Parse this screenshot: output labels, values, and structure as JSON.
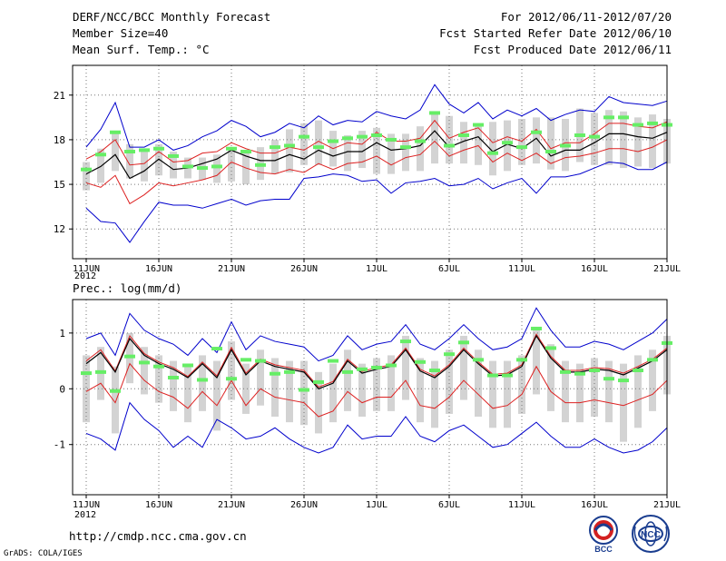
{
  "header": {
    "left": [
      "DERF/NCC/BCC Monthly Forecast",
      "Member Size=40",
      "Mean Surf. Temp.: °C"
    ],
    "right": [
      "For 2012/06/11-2012/07/20",
      "Fcst Started Refer Date 2012/06/10",
      "Fcst Produced Date 2012/06/11"
    ]
  },
  "footer": {
    "url": "http://cmdp.ncc.cma.gov.cn",
    "grads": "GrADS: COLA/IGES"
  },
  "logos": {
    "bcc": "BCC",
    "ncc": "NCC"
  },
  "colors": {
    "box": "#d3d3d3",
    "median": "#66ee66",
    "mean": "#000000",
    "band": "#dd2222",
    "extreme": "#0000cc"
  },
  "chart_data": [
    {
      "type": "line",
      "title": "Mean Surf. Temp.: °C",
      "x_labels": [
        "11JUN",
        "16JUN",
        "21JUN",
        "26JUN",
        "1JUL",
        "6JUL",
        "11JUL",
        "16JUL",
        "21JUL"
      ],
      "year_label": "2012",
      "ylim": [
        10,
        23
      ],
      "yticks": [
        12,
        15,
        18,
        21
      ],
      "mean": [
        15.7,
        16.2,
        17.0,
        15.4,
        15.9,
        16.7,
        16.0,
        16.1,
        16.4,
        16.7,
        17.3,
        16.9,
        16.6,
        16.6,
        17.0,
        16.7,
        17.3,
        16.9,
        17.2,
        17.2,
        17.8,
        17.3,
        17.4,
        17.6,
        18.6,
        17.5,
        17.9,
        18.2,
        17.2,
        17.7,
        17.4,
        18.1,
        16.9,
        17.3,
        17.3,
        17.8,
        18.4,
        18.4,
        18.2,
        18.1,
        18.5
      ],
      "series": [
        {
          "name": "upper-extreme",
          "values": [
            17.5,
            18.7,
            20.5,
            17.5,
            17.5,
            18.0,
            17.3,
            17.6,
            18.2,
            18.6,
            19.3,
            18.9,
            18.2,
            18.5,
            19.1,
            18.8,
            19.6,
            19.0,
            19.3,
            19.2,
            19.9,
            19.6,
            19.4,
            20.0,
            21.7,
            20.4,
            19.8,
            20.5,
            19.4,
            20.0,
            19.6,
            20.1,
            19.3,
            19.7,
            20.0,
            19.9,
            20.9,
            20.5,
            20.4,
            20.3,
            20.6
          ]
        },
        {
          "name": "upper-band",
          "values": [
            16.7,
            17.2,
            18.0,
            16.3,
            16.4,
            17.2,
            16.5,
            16.6,
            17.1,
            17.2,
            17.8,
            17.4,
            17.1,
            17.1,
            17.5,
            17.3,
            17.9,
            17.4,
            17.8,
            17.7,
            18.5,
            17.9,
            17.9,
            18.1,
            19.3,
            18.1,
            18.5,
            18.8,
            17.8,
            18.2,
            17.9,
            18.7,
            17.4,
            17.8,
            17.8,
            18.4,
            19.1,
            19.1,
            18.9,
            18.8,
            19.2
          ]
        },
        {
          "name": "lower-band",
          "values": [
            15.1,
            14.8,
            15.6,
            13.7,
            14.3,
            15.1,
            14.9,
            15.1,
            15.3,
            15.6,
            16.5,
            16.1,
            15.8,
            15.7,
            16.0,
            15.8,
            16.4,
            16.0,
            16.4,
            16.5,
            16.9,
            16.3,
            16.8,
            17.0,
            17.9,
            16.9,
            17.3,
            17.6,
            16.5,
            17.1,
            16.6,
            17.1,
            16.4,
            16.8,
            16.9,
            17.1,
            17.4,
            17.4,
            17.2,
            17.5,
            18.0
          ]
        },
        {
          "name": "lower-extreme",
          "values": [
            13.4,
            12.5,
            12.4,
            11.1,
            12.5,
            13.8,
            13.6,
            13.6,
            13.4,
            13.7,
            14.0,
            13.6,
            13.9,
            14.0,
            14.0,
            15.4,
            15.5,
            15.7,
            15.6,
            15.2,
            15.3,
            14.4,
            15.1,
            15.2,
            15.4,
            14.9,
            15.0,
            15.4,
            14.7,
            15.1,
            15.4,
            14.4,
            15.5,
            15.5,
            15.7,
            16.1,
            16.5,
            16.4,
            16.0,
            16.0,
            16.5
          ]
        },
        {
          "name": "ensemble-median",
          "values": [
            16.0,
            17.0,
            18.5,
            17.2,
            17.3,
            17.4,
            16.9,
            16.2,
            16.1,
            16.2,
            17.4,
            17.2,
            16.3,
            17.5,
            17.6,
            18.2,
            17.5,
            17.9,
            18.1,
            18.2,
            18.3,
            18.0,
            17.5,
            17.9,
            19.8,
            17.6,
            18.3,
            19.0,
            17.1,
            17.8,
            17.5,
            18.5,
            17.2,
            17.6,
            18.3,
            18.2,
            19.5,
            19.5,
            19.0,
            19.1,
            19.0
          ]
        },
        {
          "name": "box-top",
          "values": [
            16.5,
            17.4,
            18.5,
            17.7,
            17.3,
            17.7,
            17.2,
            16.8,
            16.8,
            17.0,
            17.4,
            17.2,
            17.5,
            18.0,
            18.7,
            19.1,
            19.3,
            18.6,
            18.3,
            18.6,
            18.8,
            18.4,
            18.4,
            18.9,
            19.9,
            19.6,
            19.2,
            19.1,
            19.2,
            19.3,
            19.4,
            19.5,
            19.5,
            19.4,
            20.1,
            19.8,
            20.0,
            19.9,
            19.5,
            19.7,
            19.4
          ]
        },
        {
          "name": "box-bottom",
          "values": [
            14.6,
            15.1,
            15.9,
            15.4,
            15.2,
            15.6,
            15.4,
            15.4,
            15.3,
            15.1,
            15.2,
            15.0,
            15.3,
            15.7,
            15.8,
            16.3,
            16.3,
            16.2,
            15.9,
            16.1,
            15.7,
            15.7,
            15.9,
            15.9,
            16.4,
            16.4,
            16.4,
            16.3,
            15.6,
            15.9,
            16.3,
            16.4,
            16.0,
            15.9,
            16.5,
            16.3,
            16.3,
            16.1,
            16.2,
            16.1,
            16.4
          ]
        }
      ]
    },
    {
      "type": "line",
      "title": "Prec.: log(mm/d)",
      "x_labels": [
        "11JUN",
        "16JUN",
        "21JUN",
        "26JUN",
        "1JUL",
        "6JUL",
        "11JUL",
        "16JUL",
        "21JUL"
      ],
      "year_label": "2012",
      "ylim": [
        -1.9,
        1.6
      ],
      "yticks": [
        -1,
        0,
        1
      ],
      "mean": [
        0.45,
        0.65,
        0.3,
        0.9,
        0.6,
        0.45,
        0.35,
        0.2,
        0.45,
        0.2,
        0.7,
        0.25,
        0.5,
        0.4,
        0.35,
        0.3,
        0.0,
        0.1,
        0.5,
        0.28,
        0.35,
        0.4,
        0.7,
        0.32,
        0.2,
        0.4,
        0.7,
        0.45,
        0.23,
        0.25,
        0.4,
        0.95,
        0.55,
        0.3,
        0.3,
        0.35,
        0.33,
        0.25,
        0.37,
        0.5,
        0.7
      ],
      "series": [
        {
          "name": "upper-extreme",
          "values": [
            0.9,
            1.0,
            0.6,
            1.35,
            1.05,
            0.9,
            0.8,
            0.6,
            0.9,
            0.65,
            1.2,
            0.7,
            0.95,
            0.85,
            0.8,
            0.75,
            0.5,
            0.6,
            0.95,
            0.7,
            0.8,
            0.85,
            1.15,
            0.8,
            0.7,
            0.9,
            1.15,
            0.9,
            0.7,
            0.75,
            0.9,
            1.45,
            1.05,
            0.75,
            0.75,
            0.85,
            0.8,
            0.7,
            0.85,
            1.0,
            1.25
          ]
        },
        {
          "name": "upper-band",
          "values": [
            0.5,
            0.7,
            0.32,
            0.95,
            0.63,
            0.48,
            0.38,
            0.22,
            0.48,
            0.23,
            0.74,
            0.28,
            0.53,
            0.43,
            0.38,
            0.33,
            0.03,
            0.13,
            0.53,
            0.31,
            0.38,
            0.43,
            0.73,
            0.35,
            0.23,
            0.43,
            0.73,
            0.48,
            0.26,
            0.28,
            0.43,
            0.98,
            0.58,
            0.33,
            0.33,
            0.38,
            0.36,
            0.28,
            0.4,
            0.53,
            0.73
          ]
        },
        {
          "name": "lower-band",
          "values": [
            -0.05,
            0.1,
            -0.25,
            0.45,
            0.15,
            -0.05,
            -0.15,
            -0.35,
            -0.05,
            -0.3,
            0.15,
            -0.3,
            0.0,
            -0.15,
            -0.2,
            -0.25,
            -0.5,
            -0.4,
            -0.05,
            -0.25,
            -0.15,
            -0.15,
            0.15,
            -0.3,
            -0.35,
            -0.15,
            0.15,
            -0.1,
            -0.35,
            -0.3,
            -0.1,
            0.4,
            -0.05,
            -0.25,
            -0.25,
            -0.2,
            -0.25,
            -0.3,
            -0.2,
            -0.1,
            0.15
          ]
        },
        {
          "name": "lower-extreme",
          "values": [
            -0.8,
            -0.9,
            -1.1,
            -0.25,
            -0.55,
            -0.75,
            -1.05,
            -0.85,
            -1.05,
            -0.55,
            -0.7,
            -0.9,
            -0.85,
            -0.7,
            -0.9,
            -1.05,
            -1.15,
            -1.05,
            -0.65,
            -0.9,
            -0.85,
            -0.85,
            -0.5,
            -0.85,
            -0.95,
            -0.75,
            -0.65,
            -0.85,
            -1.05,
            -1.0,
            -0.8,
            -0.6,
            -0.85,
            -1.05,
            -1.05,
            -0.9,
            -1.05,
            -1.15,
            -1.1,
            -0.95,
            -0.7
          ]
        },
        {
          "name": "ensemble-median",
          "values": [
            0.28,
            0.3,
            -0.04,
            0.58,
            0.47,
            0.4,
            0.2,
            0.42,
            0.16,
            0.72,
            0.18,
            0.52,
            0.5,
            0.27,
            0.3,
            -0.02,
            0.12,
            0.5,
            0.3,
            0.35,
            0.38,
            0.42,
            0.85,
            0.48,
            0.33,
            0.62,
            0.83,
            0.52,
            0.24,
            0.24,
            0.52,
            1.08,
            0.73,
            0.3,
            0.27,
            0.33,
            0.18,
            0.15,
            0.33,
            0.52,
            0.82
          ]
        },
        {
          "name": "box-top",
          "values": [
            0.6,
            0.75,
            0.4,
            1.0,
            0.75,
            0.6,
            0.5,
            0.4,
            0.6,
            0.5,
            0.85,
            0.45,
            0.7,
            0.55,
            0.5,
            0.5,
            0.3,
            0.45,
            0.7,
            0.45,
            0.55,
            0.6,
            0.95,
            0.55,
            0.5,
            0.7,
            0.95,
            0.7,
            0.5,
            0.5,
            0.6,
            1.1,
            0.8,
            0.5,
            0.45,
            0.55,
            0.5,
            0.45,
            0.6,
            0.7,
            0.95
          ]
        },
        {
          "name": "box-bottom",
          "values": [
            -0.6,
            -0.2,
            -0.8,
            0.1,
            -0.1,
            -0.25,
            -0.4,
            -0.6,
            -0.4,
            -0.75,
            -0.2,
            -0.45,
            -0.3,
            -0.5,
            -0.6,
            -0.65,
            -0.8,
            -0.6,
            -0.4,
            -0.5,
            -0.4,
            -0.4,
            -0.2,
            -0.6,
            -0.7,
            -0.45,
            -0.2,
            -0.5,
            -0.7,
            -0.7,
            -0.45,
            -0.1,
            -0.4,
            -0.6,
            -0.6,
            -0.5,
            -0.6,
            -0.95,
            -0.7,
            -0.4,
            -0.1
          ]
        }
      ]
    }
  ]
}
